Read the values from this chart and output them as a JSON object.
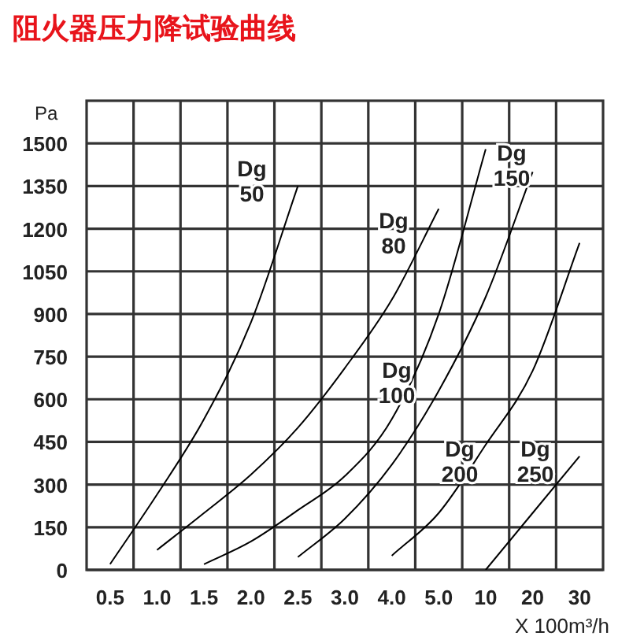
{
  "chart_data": {
    "type": "line",
    "title": "阻火器压力降试验曲线",
    "ylabel": "Pa",
    "xlabel": "X 100m³/h",
    "categories": [
      "0.5",
      "1.0",
      "1.5",
      "2.0",
      "2.5",
      "3.0",
      "4.0",
      "5.0",
      "10",
      "20",
      "30"
    ],
    "ylim": [
      0,
      1650
    ],
    "yticks": [
      0,
      150,
      300,
      450,
      600,
      750,
      900,
      1050,
      1200,
      1350,
      1500
    ],
    "grid": true,
    "legend": false,
    "marker": "none",
    "line_style": "solid",
    "series": [
      {
        "name": "Dg 50",
        "color": "#000000",
        "values": [
          20,
          265,
          530,
          870,
          1350,
          null,
          null,
          null,
          null,
          null,
          null
        ]
      },
      {
        "name": "Dg 80",
        "color": "#000000",
        "values": [
          null,
          70,
          200,
          335,
          500,
          710,
          950,
          1270,
          null,
          null,
          null
        ]
      },
      {
        "name": "Dg 100",
        "color": "#000000",
        "values": [
          null,
          null,
          20,
          100,
          210,
          330,
          530,
          900,
          1480,
          null,
          null
        ]
      },
      {
        "name": "Dg 150",
        "color": "#000000",
        "values": [
          null,
          null,
          null,
          null,
          45,
          180,
          370,
          630,
          960,
          1400,
          null
        ]
      },
      {
        "name": "Dg 200",
        "color": "#000000",
        "values": [
          null,
          null,
          null,
          null,
          null,
          null,
          50,
          200,
          440,
          700,
          1150
        ]
      },
      {
        "name": "Dg 250",
        "color": "#000000",
        "values": [
          null,
          null,
          null,
          null,
          null,
          null,
          null,
          null,
          0,
          200,
          400
        ]
      }
    ]
  }
}
